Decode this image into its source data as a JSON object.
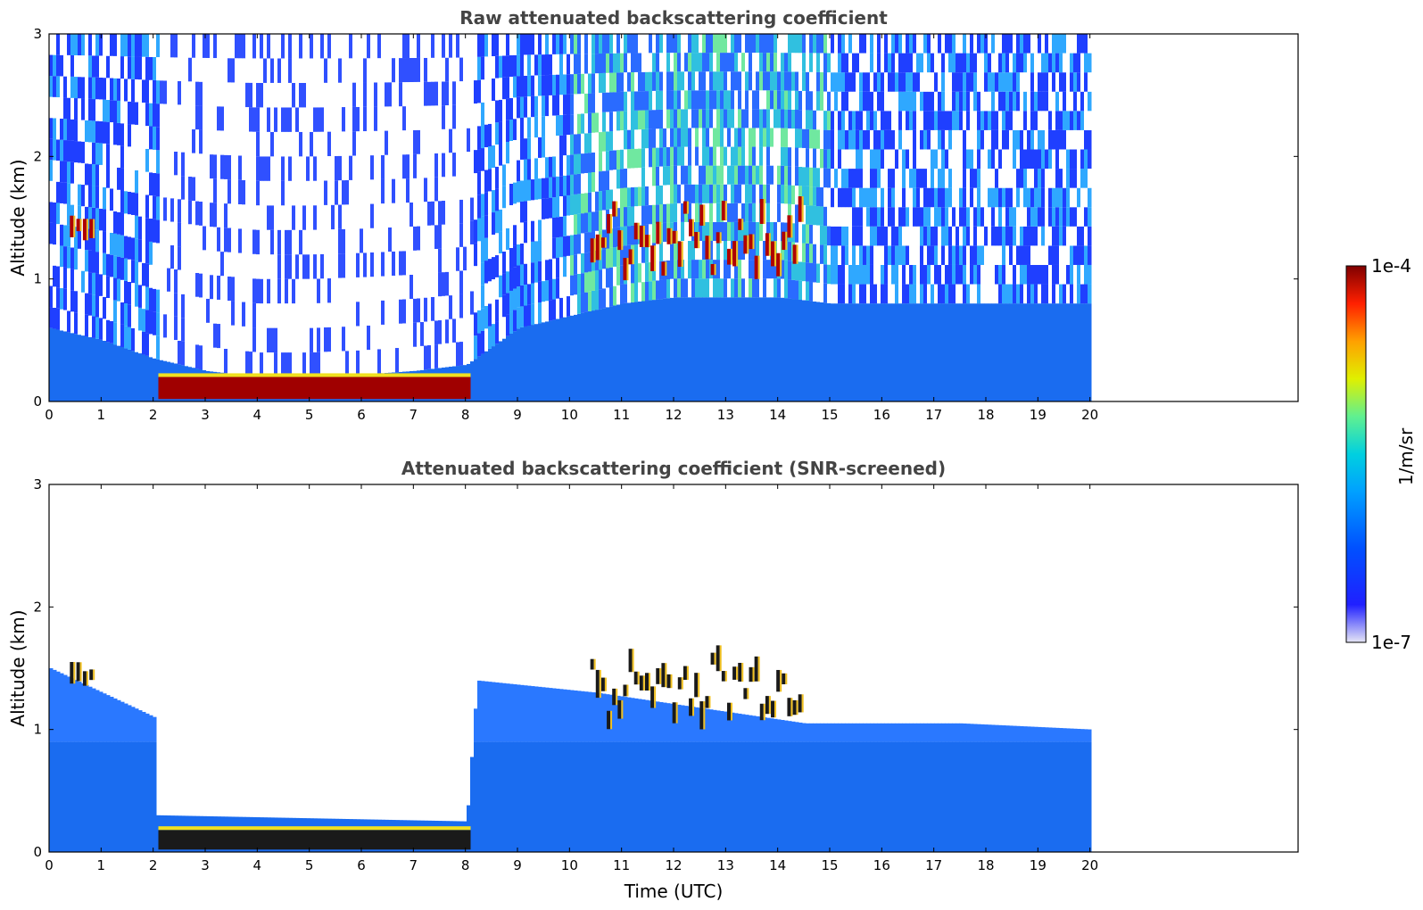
{
  "chart_data": [
    {
      "type": "heatmap",
      "title": "Raw attenuated backscattering coefficient",
      "xlabel": "",
      "ylabel": "Altitude (km)",
      "xlim": [
        0,
        24
      ],
      "ylim": [
        0,
        3
      ],
      "xticks": [
        "0",
        "1",
        "2",
        "3",
        "4",
        "5",
        "6",
        "7",
        "8",
        "9",
        "10",
        "11",
        "12",
        "13",
        "14",
        "15",
        "16",
        "17",
        "18",
        "19",
        "20"
      ],
      "yticks": [
        "0",
        "1",
        "2",
        "3"
      ],
      "data_end_time": 20,
      "features": [
        {
          "name": "boundary layer",
          "t_start": 0,
          "t_end": 20,
          "top_km": [
            0.6,
            0.5,
            0.35,
            0.25,
            0.2,
            0.2,
            0.22,
            0.25,
            0.3,
            0.6,
            0.7,
            0.8,
            0.85,
            0.85,
            0.85,
            0.8,
            0.8,
            0.8,
            0.8,
            0.8,
            0.8
          ]
        },
        {
          "name": "fog / low cloud",
          "t_start": 2.1,
          "t_end": 8.1,
          "base_km": 0.02,
          "top_km": 0.2
        },
        {
          "name": "cloud layer",
          "t_start": 0.4,
          "t_end": 0.9,
          "base_km": 1.35,
          "top_km": 1.5
        },
        {
          "name": "cloud layer",
          "t_start": 10.4,
          "t_end": 14.5,
          "base_km": 0.85,
          "top_km": 1.6
        }
      ]
    },
    {
      "type": "heatmap",
      "title": "Attenuated backscattering coefficient (SNR-screened)",
      "xlabel": "Time (UTC)",
      "ylabel": "Altitude (km)",
      "xlim": [
        0,
        24
      ],
      "ylim": [
        0,
        3
      ],
      "xticks": [
        "0",
        "1",
        "2",
        "3",
        "4",
        "5",
        "6",
        "7",
        "8",
        "9",
        "10",
        "11",
        "12",
        "13",
        "14",
        "15",
        "16",
        "17",
        "18",
        "19",
        "20"
      ],
      "yticks": [
        "0",
        "1",
        "2",
        "3"
      ],
      "data_end_time": 20,
      "features": [
        {
          "name": "screened signal top",
          "t": [
            0,
            2,
            2.05,
            8,
            8.2,
            10.5,
            14.5,
            15,
            17.5,
            20
          ],
          "top_km": [
            1.5,
            1.1,
            0.3,
            0.25,
            1.4,
            1.3,
            1.05,
            1.05,
            1.05,
            1.0
          ]
        },
        {
          "name": "fog / low cloud",
          "t_start": 2.1,
          "t_end": 8.1,
          "base_km": 0.02,
          "top_km": 0.18
        },
        {
          "name": "cloud layer",
          "t_start": 0.4,
          "t_end": 0.9,
          "base_km": 1.35,
          "top_km": 1.5
        },
        {
          "name": "cloud layer",
          "t_start": 10.4,
          "t_end": 14.5,
          "base_km": 0.85,
          "top_km": 1.6
        }
      ]
    }
  ],
  "colorbar": {
    "label": "1/m/sr",
    "max_label": "1e-4",
    "min_label": "1e-7",
    "scale": "log",
    "colormap": [
      "#e6e6f5",
      "#0000ff",
      "#1e90ff",
      "#00bfff",
      "#20e0c0",
      "#7fff7f",
      "#ffff00",
      "#ff7f00",
      "#ff0000",
      "#7f0000"
    ]
  }
}
